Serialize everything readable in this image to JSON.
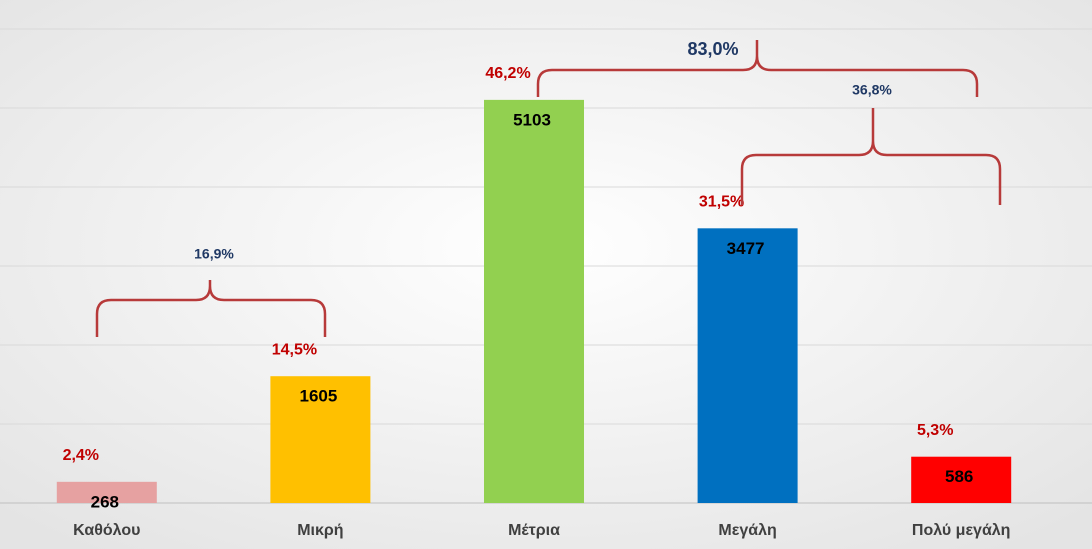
{
  "chart_data": {
    "type": "bar",
    "categories": [
      "Καθόλου",
      "Μικρή",
      "Μέτρια",
      "Μεγάλη",
      "Πολύ μεγάλη"
    ],
    "values": [
      268,
      1605,
      5103,
      3477,
      586
    ],
    "colors": [
      "#e6a1a1",
      "#ffc000",
      "#92d050",
      "#0070c0",
      "#ff0000"
    ],
    "share_labels": [
      "2,4%",
      "14,5%",
      "46,2%",
      "31,5%",
      "5,3%"
    ],
    "group_labels": [
      "16,9%",
      "83,0%",
      "36,8%"
    ],
    "ylim": [
      0,
      6000
    ],
    "yticks": [
      0,
      1000,
      2000,
      3000,
      4000,
      5000,
      6000
    ],
    "grid": true
  }
}
